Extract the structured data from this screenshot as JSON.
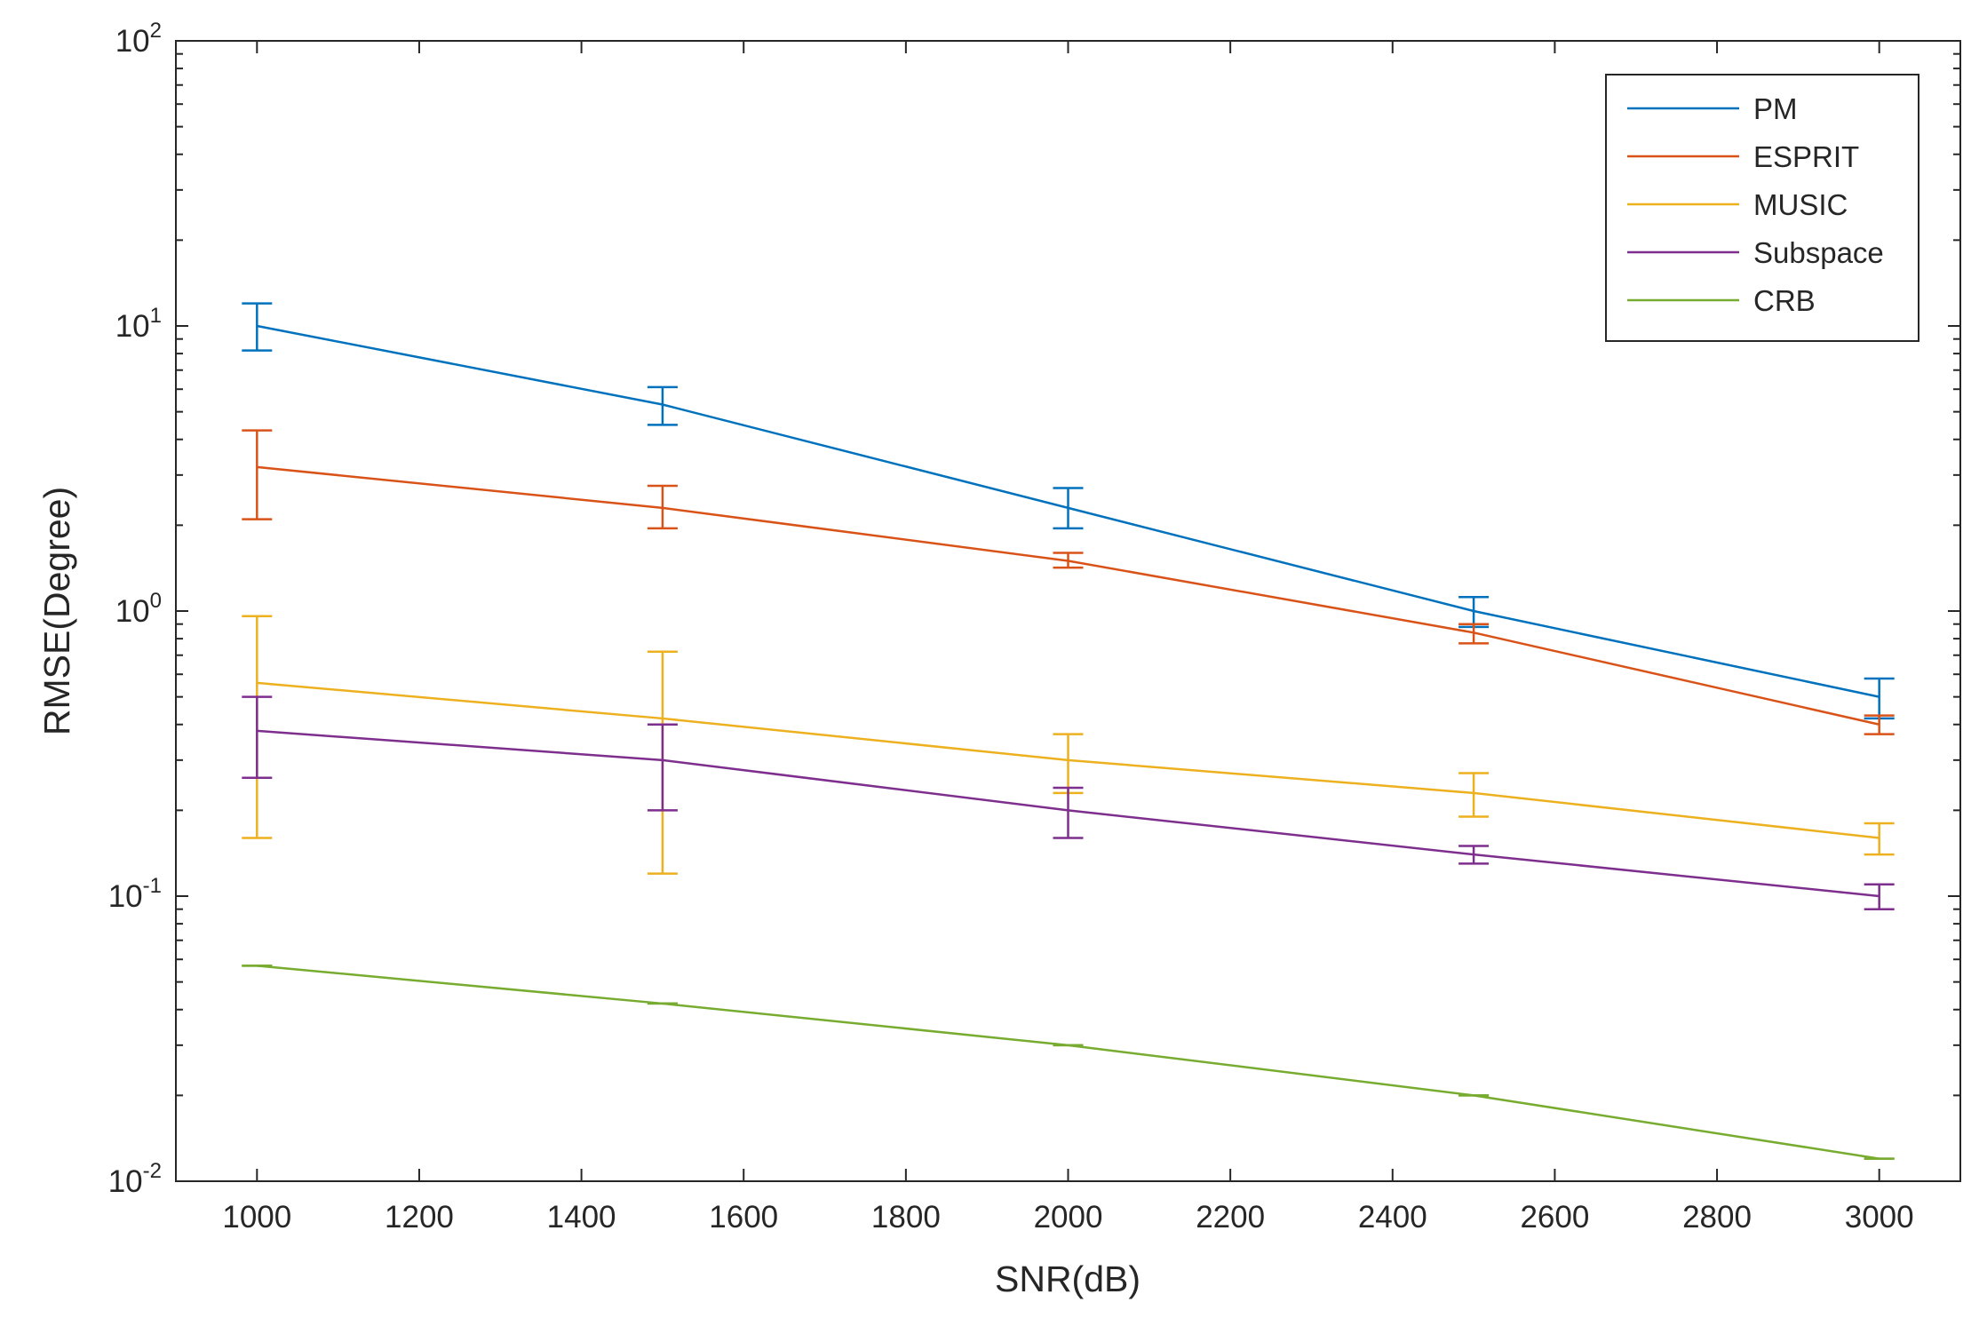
{
  "chart_data": {
    "type": "line",
    "error_bars": true,
    "xlabel": "SNR(dB)",
    "ylabel": "RMSE(Degree)",
    "xlim": [
      900,
      3100
    ],
    "ylim": [
      0.01,
      100
    ],
    "yscale": "log",
    "grid": false,
    "legend_position": "top-right",
    "x": [
      1000,
      1500,
      2000,
      2500,
      3000
    ],
    "x_tick_labels": [
      "1000",
      "1200",
      "1400",
      "1600",
      "1800",
      "2000",
      "2200",
      "2400",
      "2600",
      "2800",
      "3000"
    ],
    "x_ticks": [
      1000,
      1200,
      1400,
      1600,
      1800,
      2000,
      2200,
      2400,
      2600,
      2800,
      3000
    ],
    "y_tick_labels": [
      {
        "value": 0.01,
        "base": "10",
        "exp": "-2"
      },
      {
        "value": 0.1,
        "base": "10",
        "exp": "-1"
      },
      {
        "value": 1,
        "base": "10",
        "exp": "0"
      },
      {
        "value": 10,
        "base": "10",
        "exp": "1"
      },
      {
        "value": 100,
        "base": "10",
        "exp": "2"
      }
    ],
    "series": [
      {
        "name": "PM",
        "color": "#0072bd",
        "values": [
          10.0,
          5.3,
          2.3,
          1.0,
          0.5
        ],
        "err_low": [
          8.2,
          4.5,
          1.95,
          0.88,
          0.42
        ],
        "err_high": [
          12.0,
          6.1,
          2.7,
          1.12,
          0.58
        ]
      },
      {
        "name": "ESPRIT",
        "color": "#d95319",
        "values": [
          3.2,
          2.3,
          1.5,
          0.84,
          0.4
        ],
        "err_low": [
          2.1,
          1.95,
          1.42,
          0.77,
          0.37
        ],
        "err_high": [
          4.3,
          2.75,
          1.6,
          0.9,
          0.43
        ]
      },
      {
        "name": "MUSIC",
        "color": "#edb120",
        "values": [
          0.56,
          0.42,
          0.3,
          0.23,
          0.16
        ],
        "err_low": [
          0.16,
          0.12,
          0.23,
          0.19,
          0.14
        ],
        "err_high": [
          0.96,
          0.72,
          0.37,
          0.27,
          0.18
        ]
      },
      {
        "name": "Subspace",
        "color": "#7e2f8e",
        "values": [
          0.38,
          0.3,
          0.2,
          0.14,
          0.1
        ],
        "err_low": [
          0.26,
          0.2,
          0.16,
          0.13,
          0.09
        ],
        "err_high": [
          0.5,
          0.4,
          0.24,
          0.15,
          0.11
        ]
      },
      {
        "name": "CRB",
        "color": "#77ac30",
        "values": [
          0.057,
          0.042,
          0.03,
          0.02,
          0.012
        ],
        "err_low": [
          0.057,
          0.042,
          0.03,
          0.02,
          0.012
        ],
        "err_high": [
          0.057,
          0.042,
          0.03,
          0.02,
          0.012
        ]
      }
    ]
  }
}
